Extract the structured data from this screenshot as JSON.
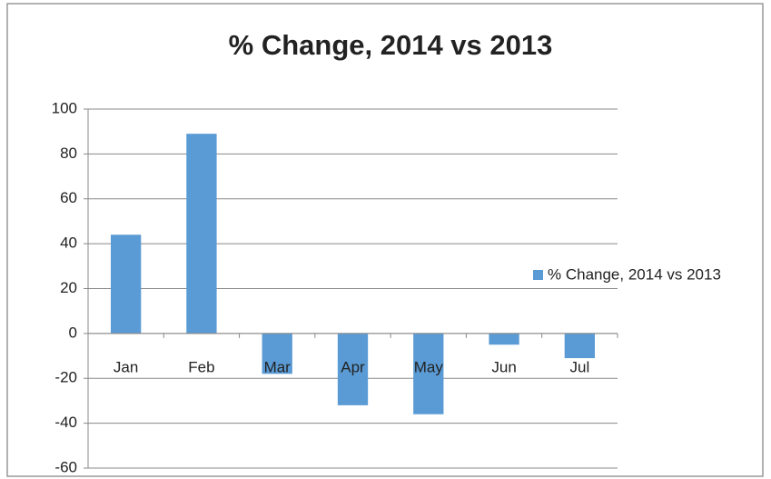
{
  "chart_data": {
    "type": "bar",
    "title": "% Change, 2014 vs 2013",
    "categories": [
      "Jan",
      "Feb",
      "Mar",
      "Apr",
      "May",
      "Jun",
      "Jul"
    ],
    "series": [
      {
        "name": "% Change, 2014 vs 2013",
        "color": "#5b9bd5",
        "values": [
          44,
          89,
          -18,
          -32,
          -36,
          -5,
          -11
        ]
      }
    ],
    "ylim": [
      -60,
      100
    ],
    "yticks": [
      -60,
      -40,
      -20,
      0,
      20,
      40,
      60,
      80,
      100
    ],
    "grid": true,
    "legend": "right"
  }
}
